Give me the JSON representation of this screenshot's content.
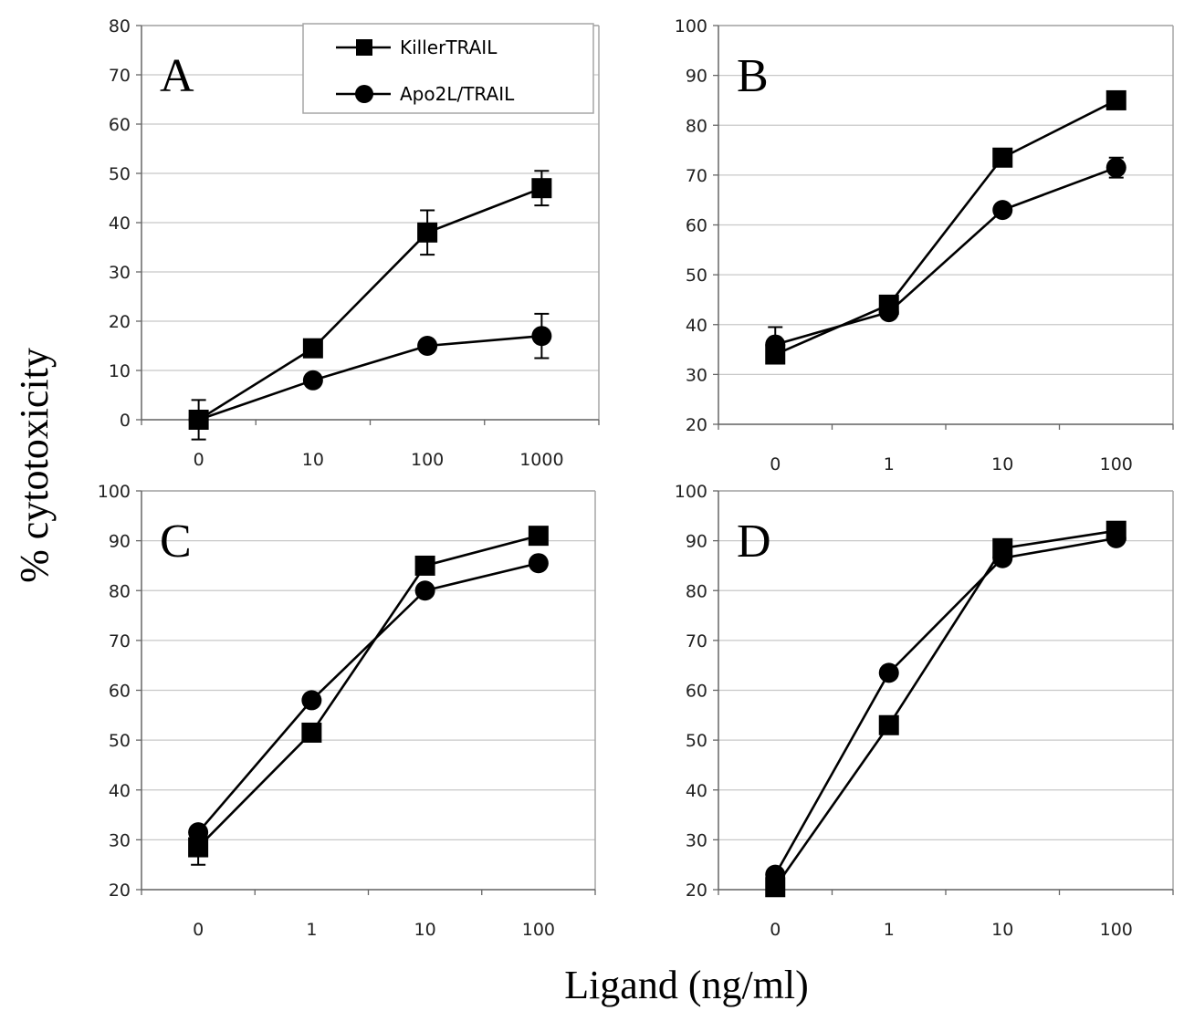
{
  "figure": {
    "ylabel": "% cytotoxicity",
    "xlabel": "Ligand (ng/ml)"
  },
  "legend": {
    "entries": [
      {
        "name": "KillerTRAIL",
        "marker": "square"
      },
      {
        "name": "Apo2L/TRAIL",
        "marker": "circle"
      }
    ],
    "placement": "top-right of panel A"
  },
  "style": {
    "line_color": "#000000",
    "grid_color": "#c8c8c8",
    "frame_color": "#a6a6a6"
  },
  "chart_data": [
    {
      "type": "line",
      "panel": "A",
      "categories": [
        "0",
        "10",
        "100",
        "1000"
      ],
      "ylim": [
        0,
        80
      ],
      "yticks": [
        "0",
        "10",
        "20",
        "30",
        "40",
        "50",
        "60",
        "70",
        "80"
      ],
      "grid": true,
      "series": [
        {
          "name": "KillerTRAIL",
          "marker": "square",
          "values": [
            0,
            14.5,
            38,
            47
          ],
          "error": [
            4,
            0,
            4.5,
            3.5
          ]
        },
        {
          "name": "Apo2L/TRAIL",
          "marker": "circle",
          "values": [
            0,
            8,
            15,
            17
          ],
          "error": [
            0,
            0,
            0,
            4.5
          ]
        }
      ]
    },
    {
      "type": "line",
      "panel": "B",
      "categories": [
        "0",
        "1",
        "10",
        "100"
      ],
      "ylim": [
        20,
        100
      ],
      "yticks": [
        "20",
        "30",
        "40",
        "50",
        "60",
        "70",
        "80",
        "90",
        "100"
      ],
      "grid": true,
      "series": [
        {
          "name": "KillerTRAIL",
          "marker": "square",
          "values": [
            34,
            44,
            73.5,
            85
          ]
        },
        {
          "name": "Apo2L/TRAIL",
          "marker": "circle",
          "values": [
            36,
            42.5,
            63,
            71.5
          ],
          "error": [
            3.5,
            0,
            0,
            2
          ]
        }
      ]
    },
    {
      "type": "line",
      "panel": "C",
      "categories": [
        "0",
        "1",
        "10",
        "100"
      ],
      "ylim": [
        20,
        100
      ],
      "yticks": [
        "20",
        "30",
        "40",
        "50",
        "60",
        "70",
        "80",
        "90",
        "100"
      ],
      "grid": true,
      "series": [
        {
          "name": "KillerTRAIL",
          "marker": "square",
          "values": [
            28.5,
            51.5,
            85,
            91
          ],
          "error": [
            3.5,
            0,
            0,
            0
          ]
        },
        {
          "name": "Apo2L/TRAIL",
          "marker": "circle",
          "values": [
            31.5,
            58,
            80,
            85.5
          ]
        }
      ]
    },
    {
      "type": "line",
      "panel": "D",
      "categories": [
        "0",
        "1",
        "10",
        "100"
      ],
      "ylim": [
        20,
        100
      ],
      "yticks": [
        "20",
        "30",
        "40",
        "50",
        "60",
        "70",
        "80",
        "90",
        "100"
      ],
      "grid": true,
      "series": [
        {
          "name": "KillerTRAIL",
          "marker": "square",
          "values": [
            20.5,
            53,
            88.5,
            92
          ]
        },
        {
          "name": "Apo2L/TRAIL",
          "marker": "circle",
          "values": [
            23,
            63.5,
            86.5,
            90.5
          ]
        }
      ]
    }
  ]
}
